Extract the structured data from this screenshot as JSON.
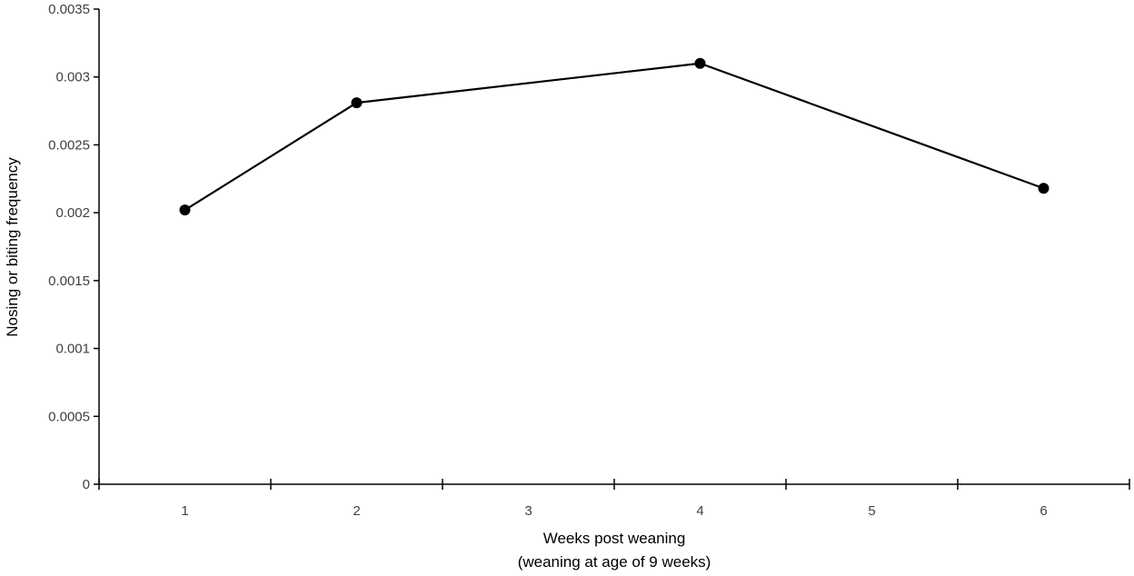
{
  "chart_data": {
    "type": "line",
    "x": [
      1,
      2,
      4,
      6
    ],
    "categories": [
      "1",
      "2",
      "3",
      "4",
      "5",
      "6"
    ],
    "series": [
      {
        "values": [
          0.00202,
          0.00281,
          0.0031,
          0.00218
        ],
        "color": "#000000"
      }
    ],
    "xlabel": "Weeks post weaning",
    "xlabel_line2": "(weaning at age of 9 weeks)",
    "ylabel": "Nosing or biting frequency",
    "ylim": [
      0,
      0.0035
    ],
    "yticks": [
      "0",
      "0.0005",
      "0.001",
      "0.0015",
      "0.002",
      "0.0025",
      "0.003",
      "0.0035"
    ],
    "grid": false,
    "legend": "none"
  }
}
